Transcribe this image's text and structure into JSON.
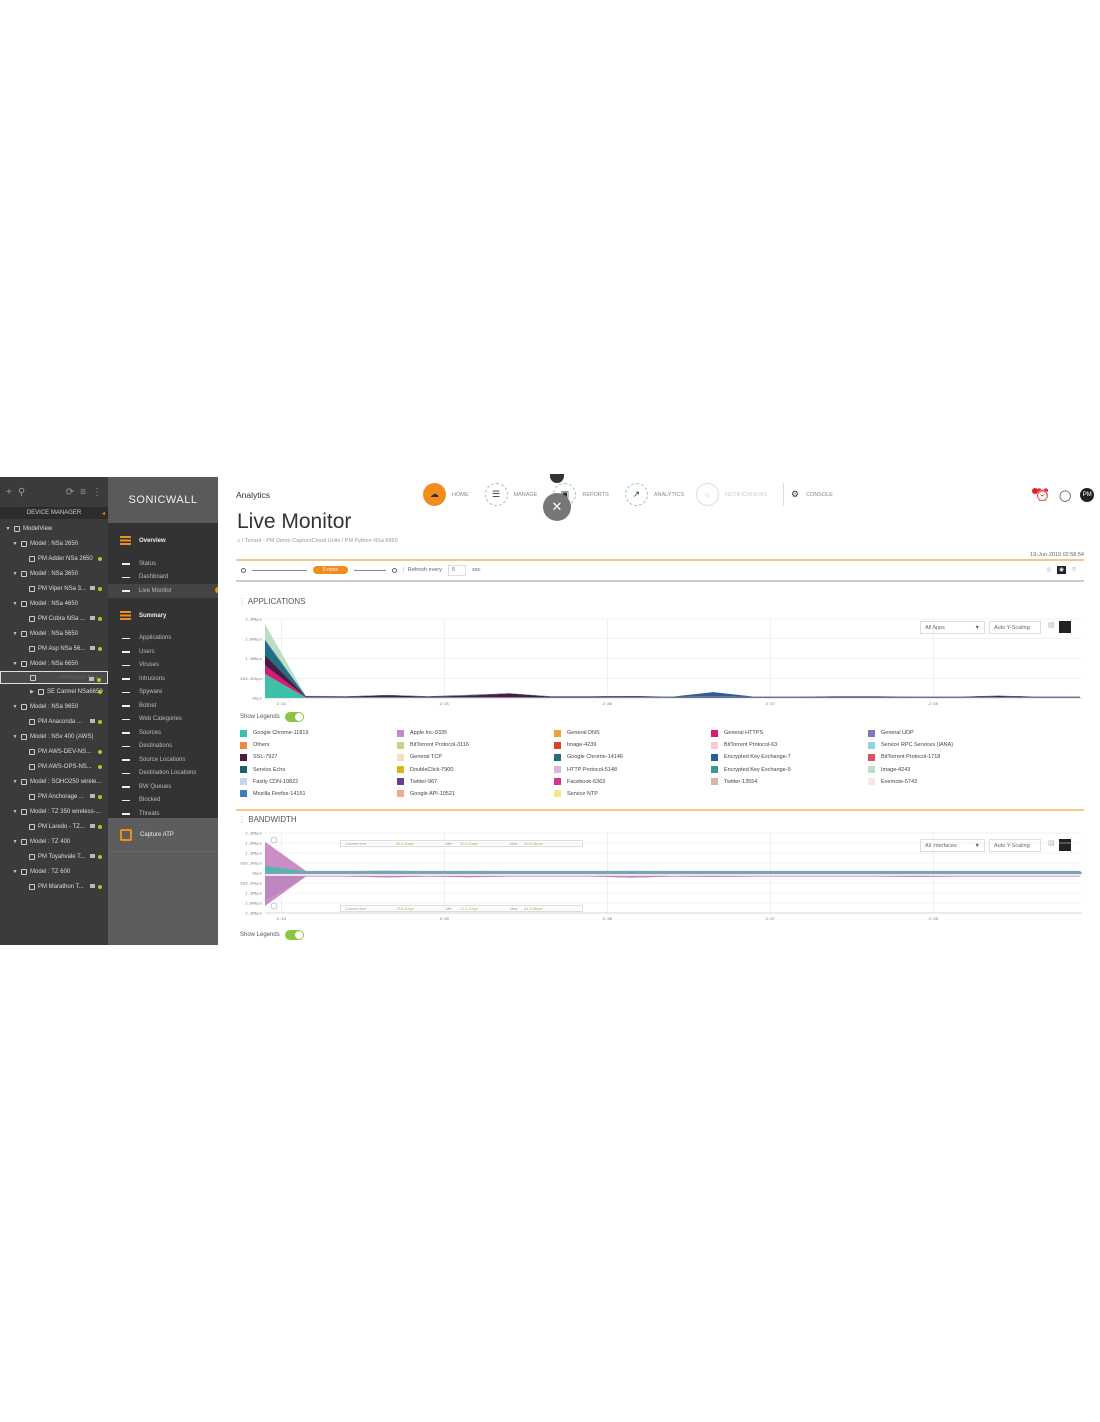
{
  "tree": {
    "title": "DEVICE MANAGER",
    "icons": [
      "plus-icon",
      "search-icon",
      "refresh-icon",
      "list-icon",
      "more-icon"
    ],
    "nodes": [
      {
        "label": "ModelView",
        "level": 0,
        "type": "root"
      },
      {
        "label": "Model : NSa 2650",
        "level": 1,
        "type": "model"
      },
      {
        "label": "PM Adder NSa 2650",
        "level": 2,
        "type": "device",
        "mon": false
      },
      {
        "label": "Model : NSa 3650",
        "level": 1,
        "type": "model"
      },
      {
        "label": "PM Viper NSa 3...",
        "level": 2,
        "type": "device",
        "mon": true
      },
      {
        "label": "Model : NSa 4650",
        "level": 1,
        "type": "model"
      },
      {
        "label": "PM Cobra NSa ...",
        "level": 2,
        "type": "device",
        "mon": true
      },
      {
        "label": "Model : NSa 5650",
        "level": 1,
        "type": "model"
      },
      {
        "label": "PM Asp NSa 56...",
        "level": 2,
        "type": "device",
        "mon": true
      },
      {
        "label": "Model : NSa 6650",
        "level": 1,
        "type": "model"
      },
      {
        "label": "PM Python NSa...",
        "level": 2,
        "type": "device",
        "mon": true,
        "selected": true
      },
      {
        "label": "SE Carmel NSa6650",
        "level": 2,
        "type": "device",
        "mon": false,
        "collapsed": true
      },
      {
        "label": "Model : NSa 9650",
        "level": 1,
        "type": "model"
      },
      {
        "label": "PM Anaconda ...",
        "level": 2,
        "type": "device",
        "mon": true
      },
      {
        "label": "Model : NSv 400 (AWS)",
        "level": 1,
        "type": "model"
      },
      {
        "label": "PM AWS-DEV-NS...",
        "level": 2,
        "type": "device",
        "mon": false
      },
      {
        "label": "PM AWS-OPS-NS...",
        "level": 2,
        "type": "device",
        "mon": false
      },
      {
        "label": "Model : SOHO250 wirele...",
        "level": 1,
        "type": "model"
      },
      {
        "label": "PM Anchorage ...",
        "level": 2,
        "type": "device",
        "mon": true
      },
      {
        "label": "Model : TZ 350 wireless-...",
        "level": 1,
        "type": "model"
      },
      {
        "label": "PM Laredo - TZ...",
        "level": 2,
        "type": "device",
        "mon": true
      },
      {
        "label": "Model : TZ 400",
        "level": 1,
        "type": "model"
      },
      {
        "label": "PM Toyahvale T...",
        "level": 2,
        "type": "device",
        "mon": true
      },
      {
        "label": "Model : TZ 600",
        "level": 1,
        "type": "model"
      },
      {
        "label": "PM Marathon T...",
        "level": 2,
        "type": "device",
        "mon": true
      }
    ]
  },
  "menu": {
    "logo": "SONICWALL",
    "overview": "Overview",
    "overview_items": [
      "Status",
      "Dashboard",
      "Live Monitor"
    ],
    "active": "Live Monitor",
    "summary": "Summary",
    "summary_items": [
      "Applications",
      "Users",
      "Viruses",
      "Intrusions",
      "Spyware",
      "Botnet",
      "Web Categories",
      "Sources",
      "Destinations",
      "Source Locations",
      "Destination Locations",
      "BW Queues",
      "Blocked",
      "Threats"
    ],
    "capture": "Capture ATP"
  },
  "header": {
    "section": "Analytics",
    "nav": [
      {
        "label": "HOME",
        "icon": "cloud-icon"
      },
      {
        "label": "MANAGE",
        "icon": "list-icon"
      },
      {
        "label": "REPORTS",
        "icon": "report-icon"
      },
      {
        "label": "ANALYTICS",
        "icon": "chart-icon"
      },
      {
        "label": "NOTIFICATIONS",
        "icon": "bell-icon"
      },
      {
        "label": "CONSOLE",
        "icon": "gear-icon"
      }
    ],
    "close_icon": "close-icon",
    "user_initials": "PM",
    "alarm_icon": "alarm-clock-icon",
    "bulb_icon": "lightbulb-icon"
  },
  "page": {
    "title": "Live Monitor",
    "breadcrumb": "/ Tenant - PM Demo CaptureCloud Units / PM Python NSa 6650",
    "timestamp": "19-Jun-2019 02:58:54",
    "time_range": "5 mins",
    "refresh_label": "Refresh every",
    "refresh_value": "5",
    "refresh_unit": "sec"
  },
  "accent": "#f28c1e",
  "applications": {
    "title": "APPLICATIONS",
    "filter": "All Apps",
    "scaling": "Auto Y-Scaling",
    "show_legends": "Show Legends",
    "legends_on": true,
    "legend": [
      {
        "label": "Google Chrome-11819",
        "color": "#3dbfa8"
      },
      {
        "label": "Others",
        "color": "#f0864a"
      },
      {
        "label": "SSL-7927",
        "color": "#4a1a45"
      },
      {
        "label": "Service Echo",
        "color": "#1f5f6a"
      },
      {
        "label": "Fastly CDN-10822",
        "color": "#c5d5ee"
      },
      {
        "label": "Mozilla Firefox-14151",
        "color": "#3f7fb5"
      },
      {
        "label": "Apple Inc-9335",
        "color": "#c48ac8"
      },
      {
        "label": "BitTorrent Protocol-3116",
        "color": "#bcd98a"
      },
      {
        "label": "General TCP",
        "color": "#f2e2c4"
      },
      {
        "label": "DoubleClick-7900",
        "color": "#d9b21e"
      },
      {
        "label": "Twitter-967",
        "color": "#6a3f8a"
      },
      {
        "label": "Google API-10521",
        "color": "#f2a98e"
      },
      {
        "label": "General DNS",
        "color": "#f2a03a"
      },
      {
        "label": "Image-4239",
        "color": "#e0402a"
      },
      {
        "label": "Google Chrome-14146",
        "color": "#1f6f80"
      },
      {
        "label": "HTTP Protocol-5148",
        "color": "#e2b5d8"
      },
      {
        "label": "Facebook-6363",
        "color": "#d8338a"
      },
      {
        "label": "Service NTP",
        "color": "#f7e58a"
      },
      {
        "label": "General HTTPS",
        "color": "#d81b72"
      },
      {
        "label": "BitTorrent Protocol-63",
        "color": "#f5cdcd"
      },
      {
        "label": "Encrypted Key Exchange-7",
        "color": "#2a5d9a"
      },
      {
        "label": "Encrypted Key Exchange-5",
        "color": "#3a9a8a"
      },
      {
        "label": "Twitter-13554",
        "color": "#c9bca8"
      },
      {
        "label": "General UDP",
        "color": "#7a7ab8"
      },
      {
        "label": "Service RPC Services (IANA)",
        "color": "#8fd3e8"
      },
      {
        "label": "BitTorrent Protocol-1718",
        "color": "#e05060"
      },
      {
        "label": "Image-4243",
        "color": "#b9dfc4"
      },
      {
        "label": "Evernote-5743",
        "color": "#f2e6e6"
      }
    ]
  },
  "bandwidth": {
    "title": "BANDWIDTH",
    "filter": "All Interfaces",
    "scaling": "Auto Y-Scaling",
    "show_legends": "Show Legends",
    "stats_top": {
      "ave_label": "Current Ave",
      "ave": "38.2 Kbps",
      "min_label": "Min",
      "min": "20.4 Kbps",
      "max_label": "Max",
      "max": "40.8 Mbps"
    },
    "stats_bottom": {
      "ave_label": "Current Ave",
      "ave": "78.8 Kbps",
      "min_label": "Min",
      "min": "21.5 Kbps",
      "max_label": "Max",
      "max": "54.0 Mbps"
    }
  },
  "chart_data": [
    {
      "type": "area",
      "stacked": true,
      "grid": true,
      "y_unit": "Mbps",
      "ylim": [
        0,
        2.3
      ],
      "y_ticks": [
        "0bps",
        "833.2Kbps",
        "1.3Mbps",
        "1.8Mbps",
        "2.3Mbps"
      ],
      "x_ticks": [
        "2:34",
        "2:35",
        "2:36",
        "2:37",
        "2:38"
      ],
      "x": [
        "2:33:54",
        "2:34:09",
        "2:34:24",
        "2:34:39",
        "2:34:54",
        "2:35:09",
        "2:35:24",
        "2:35:39",
        "2:35:54",
        "2:36:09",
        "2:36:24",
        "2:36:39",
        "2:36:54",
        "2:37:09",
        "2:37:24",
        "2:37:39",
        "2:37:54",
        "2:38:09",
        "2:38:24",
        "2:38:39",
        "2:38:54"
      ],
      "series": [
        {
          "name": "Google Chrome-11819",
          "color": "#3dbfa8",
          "values": [
            0.7,
            0.02,
            0.01,
            0.02,
            0.01,
            0.02,
            0.02,
            0.01,
            0.01,
            0.02,
            0.01,
            0.01,
            0.01,
            0.01,
            0.01,
            0.01,
            0.01,
            0.01,
            0.02,
            0.01,
            0.01
          ]
        },
        {
          "name": "General HTTPS",
          "color": "#d81b72",
          "values": [
            0.25,
            0.01,
            0.01,
            0.01,
            0.01,
            0.01,
            0.01,
            0.01,
            0.01,
            0.01,
            0.01,
            0.01,
            0.01,
            0.01,
            0.01,
            0.01,
            0.01,
            0.01,
            0.01,
            0.01,
            0.01
          ]
        },
        {
          "name": "SSL-7927",
          "color": "#4a1a45",
          "values": [
            0.3,
            0.02,
            0.02,
            0.05,
            0.02,
            0.04,
            0.1,
            0.02,
            0.02,
            0.02,
            0.01,
            0.02,
            0.01,
            0.01,
            0.02,
            0.02,
            0.01,
            0.01,
            0.03,
            0.01,
            0.01
          ]
        },
        {
          "name": "Google Chrome-14146",
          "color": "#1f6f80",
          "values": [
            0.4,
            0.01,
            0.01,
            0.01,
            0.01,
            0.02,
            0.01,
            0.01,
            0.01,
            0.01,
            0.01,
            0.01,
            0.01,
            0.01,
            0.01,
            0.01,
            0.01,
            0.01,
            0.01,
            0.01,
            0.01
          ]
        },
        {
          "name": "Encrypted Key Exchange-7",
          "color": "#2a5d9a",
          "values": [
            0.05,
            0.0,
            0.0,
            0.0,
            0.0,
            0.0,
            0.0,
            0.0,
            0.0,
            0.0,
            0.0,
            0.12,
            0.0,
            0.0,
            0.0,
            0.0,
            0.0,
            0.0,
            0.0,
            0.0,
            0.0
          ]
        },
        {
          "name": "Image-4243",
          "color": "#b9dfc4",
          "values": [
            0.45,
            0.01,
            0.0,
            0.0,
            0.0,
            0.0,
            0.0,
            0.0,
            0.0,
            0.0,
            0.0,
            0.0,
            0.0,
            0.0,
            0.0,
            0.0,
            0.0,
            0.0,
            0.0,
            0.0,
            0.0
          ]
        }
      ]
    },
    {
      "type": "area",
      "mirrored": true,
      "grid": true,
      "y_unit": "Mbps",
      "ylim": [
        -2.3,
        2.3
      ],
      "y_ticks": [
        "2.3Mbps",
        "1.8Mbps",
        "1.3Mbps",
        "833.2Kbps",
        "0bps",
        "833.2Kbps",
        "1.3Mbps",
        "1.8Mbps",
        "2.3Mbps"
      ],
      "x_ticks": [
        "2:34",
        "2:35",
        "2:36",
        "2:37",
        "2:38"
      ],
      "x": [
        "2:33:54",
        "2:34:09",
        "2:34:24",
        "2:34:39",
        "2:34:54",
        "2:35:09",
        "2:35:24",
        "2:35:39",
        "2:35:54",
        "2:36:09",
        "2:36:24",
        "2:36:39",
        "2:36:54",
        "2:37:09",
        "2:37:24",
        "2:37:39",
        "2:37:54",
        "2:38:09",
        "2:38:24",
        "2:38:39",
        "2:38:54"
      ],
      "series": [
        {
          "color": "#c880c0",
          "direction": "up",
          "values": [
            1.8,
            0.12,
            0.12,
            0.14,
            0.12,
            0.13,
            0.12,
            0.12,
            0.12,
            0.13,
            0.12,
            0.12,
            0.12,
            0.12,
            0.12,
            0.12,
            0.12,
            0.12,
            0.12,
            0.12,
            0.12
          ]
        },
        {
          "color": "#3dbfa8",
          "direction": "up",
          "values": [
            0.4,
            0.1,
            0.1,
            0.12,
            0.1,
            0.11,
            0.1,
            0.1,
            0.1,
            0.11,
            0.1,
            0.1,
            0.1,
            0.1,
            0.1,
            0.1,
            0.1,
            0.1,
            0.1,
            0.1,
            0.1
          ]
        },
        {
          "color": "#3dbfa8",
          "direction": "down",
          "values": [
            1.6,
            0.2,
            0.2,
            0.25,
            0.2,
            0.24,
            0.2,
            0.2,
            0.2,
            0.26,
            0.2,
            0.22,
            0.2,
            0.2,
            0.2,
            0.2,
            0.22,
            0.2,
            0.2,
            0.2,
            0.2
          ]
        },
        {
          "color": "#c880c0",
          "direction": "down",
          "values": [
            1.9,
            0.21,
            0.21,
            0.26,
            0.21,
            0.25,
            0.21,
            0.21,
            0.21,
            0.27,
            0.21,
            0.23,
            0.21,
            0.21,
            0.21,
            0.21,
            0.23,
            0.21,
            0.21,
            0.21,
            0.21
          ]
        }
      ]
    }
  ]
}
